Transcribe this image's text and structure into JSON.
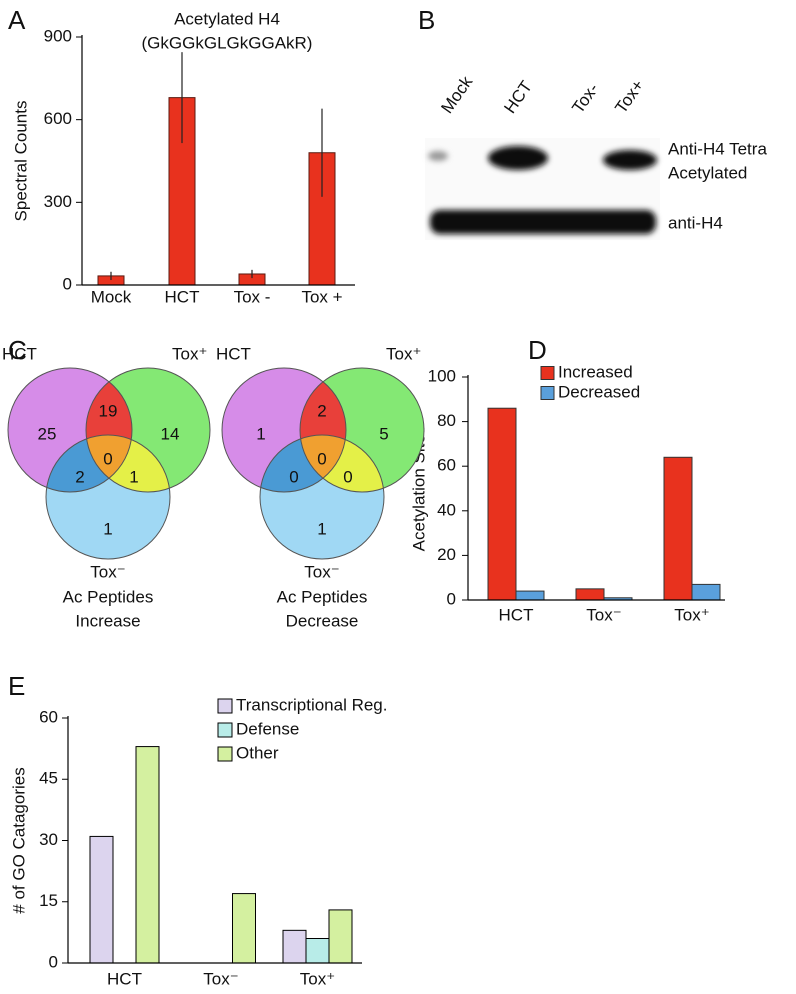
{
  "panels": [
    "A",
    "B",
    "C",
    "D",
    "E"
  ],
  "chart_data": [
    {
      "type": "bar",
      "title": "Acetylated H4",
      "subtitle": "(GkGGkGLGkGGAkR)",
      "ylabel": "Spectral Counts",
      "categories": [
        "Mock",
        "HCT",
        "Tox -",
        "Tox +"
      ],
      "values": [
        33,
        680,
        40,
        480
      ],
      "errors": [
        15,
        165,
        15,
        160
      ],
      "color": "#e8321e",
      "edgecolor": "#5a1a10",
      "ylim": [
        0,
        900
      ],
      "yticks": [
        0,
        300,
        600,
        900
      ]
    },
    {
      "type": "bar",
      "ylabel": "Acetylation Sites",
      "categories": [
        "HCT",
        "Tox⁻",
        "Tox⁺"
      ],
      "series": [
        {
          "name": "Increased",
          "color": "#e8321e",
          "values": [
            86,
            5,
            64
          ]
        },
        {
          "name": "Decreased",
          "color": "#5aa0dc",
          "values": [
            4,
            1,
            7
          ]
        }
      ],
      "edgecolor": "#333333",
      "ylim": [
        0,
        100
      ],
      "yticks": [
        0,
        20,
        40,
        60,
        80,
        100
      ],
      "legend": "upper center"
    },
    {
      "type": "bar",
      "ylabel": "# of GO Catagories",
      "categories": [
        "HCT",
        "Tox⁻",
        "Tox⁺"
      ],
      "series": [
        {
          "name": "Transcriptional Reg.",
          "color": "#dcd4ee",
          "values": [
            31,
            0,
            8
          ]
        },
        {
          "name": "Defense",
          "color": "#b8ece8",
          "values": [
            0,
            0,
            6
          ]
        },
        {
          "name": "Other",
          "color": "#d4f0a0",
          "values": [
            53,
            17,
            13
          ]
        }
      ],
      "edgecolor": "#000000",
      "ylim": [
        0,
        60
      ],
      "yticks": [
        0,
        15,
        30,
        45,
        60
      ],
      "legend": "upper center"
    }
  ],
  "blot": {
    "lanes": [
      "Mock",
      "HCT",
      "Tox-",
      "Tox+"
    ],
    "label_top": [
      "Anti-H4 Tetra",
      "Acetylated"
    ],
    "label_bottom": "anti-H4"
  },
  "venn": [
    {
      "sets": [
        "HCT",
        "Tox⁺",
        "Tox⁻"
      ],
      "counts": [
        25,
        19,
        14,
        2,
        0,
        1,
        1
      ],
      "caption": [
        "Ac Peptides",
        "Increase"
      ]
    },
    {
      "sets": [
        "HCT",
        "Tox⁺",
        "Tox⁻"
      ],
      "counts": [
        1,
        2,
        5,
        0,
        0,
        0,
        1
      ],
      "caption": [
        "Ac Peptides",
        "Decrease"
      ]
    }
  ]
}
